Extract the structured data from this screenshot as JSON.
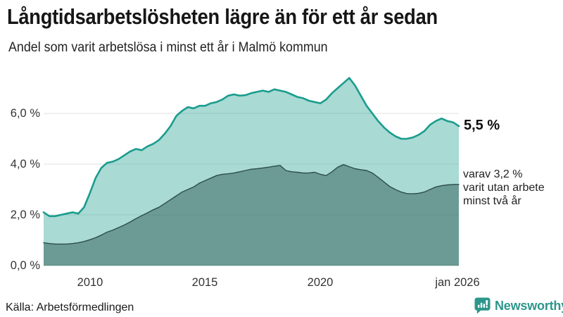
{
  "header": {
    "title": "Långtidsarbetslösheten lägre än för ett år sedan",
    "subtitle": "Andel som varit arbetslösa i minst ett år i Malmö kommun"
  },
  "chart_data": {
    "type": "area",
    "title": "Långtidsarbetslösheten lägre än för ett år sedan",
    "subtitle": "Andel som varit arbetslösa i minst ett år i Malmö kommun",
    "x_unit": "year (monthly share, plotted quarterly)",
    "xlim": [
      2008,
      2026
    ],
    "x_step": 0.25,
    "ylim": [
      0,
      7.6
    ],
    "grid": "horizontal",
    "legend": "none",
    "yticks": [
      {
        "value": 6,
        "label": "6,0 %"
      },
      {
        "value": 4,
        "label": "4,0 %"
      },
      {
        "value": 2,
        "label": "2,0 %"
      },
      {
        "value": 0,
        "label": "0,0 %"
      }
    ],
    "xticks": [
      {
        "value": 2010,
        "label": "2010"
      },
      {
        "value": 2015,
        "label": "2015"
      },
      {
        "value": 2020,
        "label": "2020"
      },
      {
        "value": 2026,
        "label": "jan 2026"
      }
    ],
    "series": [
      {
        "name": "Arbetslösa minst ett år",
        "color": "#1a9c8d",
        "fill": "rgba(23,154,138,0.37)",
        "stroke_width": 2.6,
        "end_value": 5.5,
        "values": [
          2.1,
          1.95,
          1.95,
          2.0,
          2.05,
          2.1,
          2.05,
          2.3,
          2.85,
          3.45,
          3.85,
          4.05,
          4.1,
          4.2,
          4.35,
          4.5,
          4.6,
          4.55,
          4.7,
          4.8,
          4.95,
          5.2,
          5.5,
          5.9,
          6.1,
          6.25,
          6.2,
          6.3,
          6.3,
          6.4,
          6.45,
          6.55,
          6.7,
          6.75,
          6.7,
          6.72,
          6.8,
          6.85,
          6.9,
          6.85,
          6.95,
          6.9,
          6.85,
          6.75,
          6.65,
          6.6,
          6.5,
          6.45,
          6.4,
          6.55,
          6.8,
          7.0,
          7.2,
          7.4,
          7.1,
          6.7,
          6.3,
          6.0,
          5.7,
          5.45,
          5.25,
          5.1,
          5.0,
          5.0,
          5.05,
          5.15,
          5.3,
          5.55,
          5.7,
          5.8,
          5.7,
          5.65,
          5.5
        ]
      },
      {
        "name": "varav utan arbete minst två år",
        "color": "#2e4e4a",
        "fill": "rgba(31,77,72,0.45)",
        "stroke_width": 1.4,
        "end_value": 3.2,
        "values": [
          0.9,
          0.87,
          0.85,
          0.85,
          0.85,
          0.87,
          0.9,
          0.95,
          1.02,
          1.1,
          1.2,
          1.32,
          1.4,
          1.5,
          1.6,
          1.72,
          1.85,
          1.97,
          2.08,
          2.2,
          2.3,
          2.45,
          2.6,
          2.75,
          2.9,
          3.0,
          3.1,
          3.25,
          3.35,
          3.45,
          3.55,
          3.6,
          3.62,
          3.65,
          3.7,
          3.75,
          3.8,
          3.82,
          3.85,
          3.88,
          3.92,
          3.95,
          3.75,
          3.7,
          3.68,
          3.65,
          3.65,
          3.68,
          3.6,
          3.55,
          3.7,
          3.88,
          3.98,
          3.9,
          3.82,
          3.78,
          3.75,
          3.65,
          3.48,
          3.3,
          3.12,
          3.0,
          2.9,
          2.84,
          2.83,
          2.85,
          2.9,
          3.0,
          3.1,
          3.15,
          3.18,
          3.2,
          3.2
        ]
      }
    ],
    "annotations": {
      "end_value_label": "5,5 %",
      "note_lines": [
        "varav 3,2 %",
        "varit utan arbete",
        "minst två år"
      ]
    }
  },
  "footer": {
    "source": "Källa: Arbetsförmedlingen",
    "brand": "Newsworthy"
  },
  "colors": {
    "accent_teal": "#1a9c8d",
    "dark_line": "#2e4e4a",
    "gridline": "#e2e2e2",
    "axis_line": "#b9c0c0",
    "brand_teal": "#2e968b",
    "title_text": "#161616",
    "body_text": "#222222",
    "tick_text": "#333333"
  }
}
